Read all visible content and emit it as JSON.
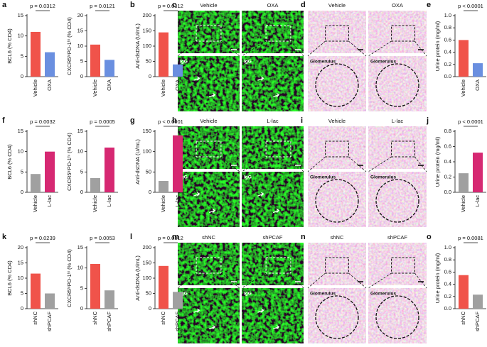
{
  "panel_letters": [
    "a",
    "b",
    "c",
    "d",
    "e",
    "f",
    "g",
    "h",
    "i",
    "j",
    "k",
    "l",
    "m",
    "n",
    "o"
  ],
  "images": [
    {
      "conditions": [
        "Vehicle",
        "OXA"
      ],
      "inset_label": "IgG"
    },
    {
      "conditions": [
        "Vehicle",
        "OXA"
      ],
      "inset_label": "Glomerulus"
    },
    {
      "conditions": [
        "Vehicle",
        "L-lac"
      ],
      "inset_label": "IgG"
    },
    {
      "conditions": [
        "Vehicle",
        "L-lac"
      ],
      "inset_label": "Glomerulus"
    },
    {
      "conditions": [
        "shNC",
        "shPCAF"
      ],
      "inset_label": "IgG"
    },
    {
      "conditions": [
        "shNC",
        "shPCAF"
      ],
      "inset_label": "Glomerulus"
    }
  ],
  "chart_data": [
    {
      "type": "bar",
      "ylabel": "BCL6 (% CD4)",
      "categories": [
        "Vehicle",
        "OXA"
      ],
      "values": [
        11,
        6
      ],
      "colors": [
        "#f0534a",
        "#6a8fe0"
      ],
      "ylim": [
        0,
        15
      ],
      "yticks": [
        0,
        5,
        10,
        15
      ],
      "annotation": "p = 0.0312"
    },
    {
      "type": "bar",
      "ylabel": "CXCR5ʰⁱPD-1ʰⁱ (% CD4)",
      "categories": [
        "Vehicle",
        "OXA"
      ],
      "values": [
        10.5,
        5.5
      ],
      "colors": [
        "#f0534a",
        "#6a8fe0"
      ],
      "ylim": [
        0,
        20
      ],
      "yticks": [
        0,
        5,
        10,
        15,
        20
      ],
      "annotation": "p = 0.0121"
    },
    {
      "type": "bar",
      "ylabel": "Anti-dsDNA (U/mL)",
      "categories": [
        "Vehicle",
        "OXA"
      ],
      "values": [
        145,
        40
      ],
      "colors": [
        "#f0534a",
        "#6a8fe0"
      ],
      "ylim": [
        0,
        200
      ],
      "yticks": [
        0,
        50,
        100,
        150,
        200
      ],
      "annotation": "p = 0.0312"
    },
    {
      "type": "bar",
      "ylabel": "Urine protein (mg/ml)",
      "categories": [
        "Vehicle",
        "OXA"
      ],
      "values": [
        0.6,
        0.22
      ],
      "colors": [
        "#f0534a",
        "#6a8fe0"
      ],
      "ylim": [
        0,
        1
      ],
      "yticks": [
        {
          "value": 0,
          "label": "0.0"
        },
        0.2,
        0.4,
        0.6,
        0.8,
        {
          "value": 1,
          "label": "1.0"
        }
      ],
      "annotation": "p < 0.0001"
    },
    {
      "type": "bar",
      "ylabel": "BCL6 (% CD4)",
      "categories": [
        "Vehicle",
        "L-lac"
      ],
      "values": [
        4.5,
        10
      ],
      "colors": [
        "#a0a0a0",
        "#d62872"
      ],
      "ylim": [
        0,
        15
      ],
      "yticks": [
        0,
        5,
        10,
        15
      ],
      "annotation": "p = 0.0032"
    },
    {
      "type": "bar",
      "ylabel": "CXCR5ʰⁱPD-1ʰⁱ (% CD4)",
      "categories": [
        "Vehicle",
        "L-lac"
      ],
      "values": [
        3.5,
        11
      ],
      "colors": [
        "#a0a0a0",
        "#d62872"
      ],
      "ylim": [
        0,
        15
      ],
      "yticks": [
        0,
        5,
        10,
        15
      ],
      "annotation": "p = 0.0005"
    },
    {
      "type": "bar",
      "ylabel": "Anti-dsDNA (U/mL)",
      "categories": [
        "Vehicle",
        "L-lac"
      ],
      "values": [
        28,
        140
      ],
      "colors": [
        "#a0a0a0",
        "#d62872"
      ],
      "ylim": [
        0,
        150
      ],
      "yticks": [
        0,
        50,
        100,
        150
      ],
      "annotation": "p < 0.0001"
    },
    {
      "type": "bar",
      "ylabel": "Urine protein (mg/ml)",
      "categories": [
        "Vehicle",
        "L-lac"
      ],
      "values": [
        0.25,
        0.52
      ],
      "colors": [
        "#a0a0a0",
        "#d62872"
      ],
      "ylim": [
        0,
        0.8
      ],
      "yticks": [
        {
          "value": 0,
          "label": "0.0"
        },
        0.2,
        0.4,
        0.6,
        0.8
      ],
      "annotation": "p < 0.0001"
    },
    {
      "type": "bar",
      "ylabel": "BCL6 (% CD4)",
      "categories": [
        "shNC",
        "shPCAF"
      ],
      "values": [
        11.5,
        5
      ],
      "colors": [
        "#f0534a",
        "#a0a0a0"
      ],
      "ylim": [
        0,
        20
      ],
      "yticks": [
        0,
        5,
        10,
        15,
        20
      ],
      "annotation": "p = 0.0239"
    },
    {
      "type": "bar",
      "ylabel": "CXCR5ʰⁱPD-1ʰⁱ (% CD4)",
      "categories": [
        "shNC",
        "shPCAF"
      ],
      "values": [
        11,
        4.5
      ],
      "colors": [
        "#f0534a",
        "#a0a0a0"
      ],
      "ylim": [
        0,
        15
      ],
      "yticks": [
        0,
        5,
        10,
        15
      ],
      "annotation": "p = 0.0053"
    },
    {
      "type": "bar",
      "ylabel": "Anti-dsDNA (U/mL)",
      "categories": [
        "shNC",
        "shPCAF"
      ],
      "values": [
        140,
        55
      ],
      "colors": [
        "#f0534a",
        "#a0a0a0"
      ],
      "ylim": [
        0,
        200
      ],
      "yticks": [
        0,
        50,
        100,
        150,
        200
      ],
      "annotation": "p = 0.0312"
    },
    {
      "type": "bar",
      "ylabel": "Urine protein (mg/ml)",
      "categories": [
        "shNC",
        "shPCAF"
      ],
      "values": [
        0.55,
        0.23
      ],
      "colors": [
        "#f0534a",
        "#a0a0a0"
      ],
      "ylim": [
        0,
        1
      ],
      "yticks": [
        {
          "value": 0,
          "label": "0.0"
        },
        0.2,
        0.4,
        0.6,
        0.8,
        {
          "value": 1,
          "label": "1.0"
        }
      ],
      "annotation": "p = 0.0081"
    }
  ]
}
